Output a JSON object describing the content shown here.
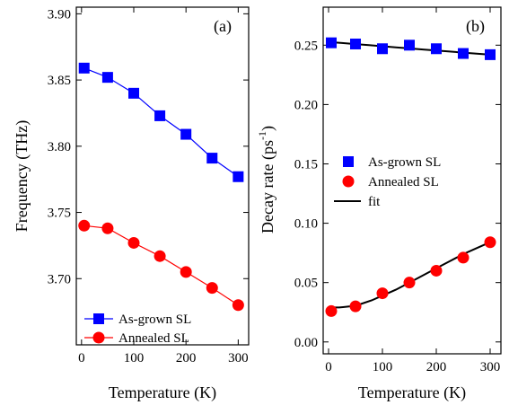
{
  "chart_data": [
    {
      "type": "line",
      "panel_label": "(a)",
      "xlabel": "Temperature (K)",
      "ylabel": "Frequency (THz)",
      "xlim": [
        -10,
        320
      ],
      "ylim": [
        3.65,
        3.905
      ],
      "xticks": [
        0,
        100,
        200,
        300
      ],
      "xtick_labels": [
        "0",
        "100",
        "200",
        "300"
      ],
      "yticks": [
        3.7,
        3.75,
        3.8,
        3.85,
        3.9
      ],
      "ytick_labels": [
        "3.70",
        "3.75",
        "3.80",
        "3.85",
        "3.90"
      ],
      "grid": false,
      "legend_position": "bottom-left",
      "series": [
        {
          "name": "As-grown SL",
          "color": "#0000ff",
          "marker": "square",
          "x": [
            5,
            50,
            100,
            150,
            200,
            250,
            300
          ],
          "y": [
            3.859,
            3.852,
            3.84,
            3.823,
            3.809,
            3.791,
            3.777
          ]
        },
        {
          "name": "Annealed SL",
          "color": "#ff0000",
          "marker": "circle",
          "x": [
            5,
            50,
            100,
            150,
            200,
            250,
            300
          ],
          "y": [
            3.74,
            3.738,
            3.727,
            3.717,
            3.705,
            3.693,
            3.68
          ]
        }
      ]
    },
    {
      "type": "scatter",
      "panel_label": "(b)",
      "xlabel": "Temperature (K)",
      "ylabel_main": "Decay rate (ps",
      "ylabel_sup": "-1",
      "ylabel_end": ")",
      "xlim": [
        -10,
        320
      ],
      "ylim": [
        -0.01,
        0.282
      ],
      "xticks": [
        0,
        100,
        200,
        300
      ],
      "xtick_labels": [
        "0",
        "100",
        "200",
        "300"
      ],
      "yticks": [
        0.0,
        0.05,
        0.1,
        0.15,
        0.2,
        0.25
      ],
      "ytick_labels": [
        "0.00",
        "0.05",
        "0.10",
        "0.15",
        "0.20",
        "0.25"
      ],
      "grid": false,
      "legend_position": "center-left",
      "series": [
        {
          "name": "As-grown SL",
          "color": "#0000ff",
          "marker": "square",
          "x": [
            5,
            50,
            100,
            150,
            200,
            250,
            300
          ],
          "y": [
            0.252,
            0.251,
            0.247,
            0.25,
            0.247,
            0.243,
            0.242
          ]
        },
        {
          "name": "Annealed SL",
          "color": "#ff0000",
          "marker": "circle",
          "x": [
            5,
            50,
            100,
            150,
            200,
            250,
            300
          ],
          "y": [
            0.026,
            0.03,
            0.041,
            0.05,
            0.06,
            0.071,
            0.084
          ]
        }
      ],
      "fits": [
        {
          "name": "fit",
          "color": "#000000",
          "x": [
            5,
            25,
            50,
            75,
            100,
            125,
            150,
            175,
            200,
            225,
            250,
            275,
            300
          ],
          "y": [
            0.2525,
            0.2518,
            0.2509,
            0.25,
            0.2491,
            0.2482,
            0.2473,
            0.2464,
            0.2455,
            0.2446,
            0.2437,
            0.2428,
            0.242
          ]
        },
        {
          "name": "fit-annealed",
          "color": "#000000",
          "x": [
            5,
            20,
            40,
            60,
            80,
            100,
            125,
            150,
            175,
            200,
            225,
            250,
            275,
            300
          ],
          "y": [
            0.029,
            0.029,
            0.03,
            0.032,
            0.035,
            0.039,
            0.044,
            0.05,
            0.056,
            0.062,
            0.068,
            0.074,
            0.079,
            0.084
          ]
        }
      ],
      "legend_fit_label": "fit"
    }
  ]
}
